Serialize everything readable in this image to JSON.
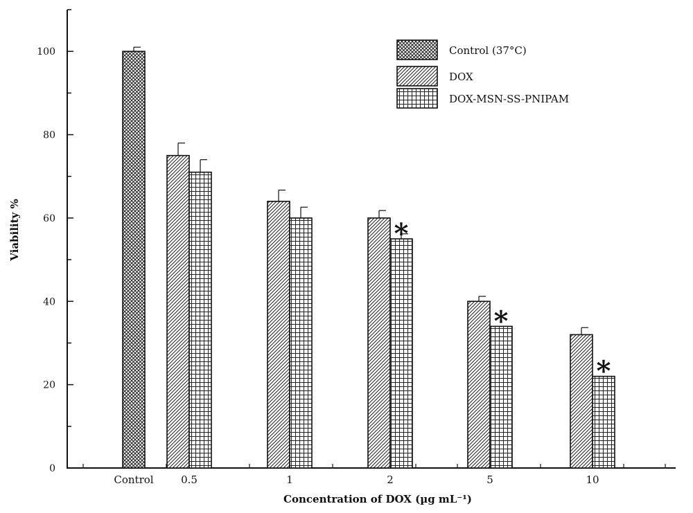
{
  "chart_data": {
    "type": "bar",
    "xlabel": "Concentration of DOX (µg mL⁻¹)",
    "ylabel": "Viability %",
    "ylim": [
      0,
      110
    ],
    "yticks": [
      0,
      20,
      40,
      60,
      80,
      100
    ],
    "categories": [
      "Control",
      "0.5",
      "1",
      "2",
      "5",
      "10"
    ],
    "series": [
      {
        "name": "Control (37°C)",
        "pattern": "crosshatch",
        "values": [
          100,
          null,
          null,
          null,
          null,
          null
        ],
        "errors": [
          1,
          null,
          null,
          null,
          null,
          null
        ]
      },
      {
        "name": "DOX",
        "pattern": "diagonal",
        "values": [
          null,
          75,
          64,
          60,
          40,
          32
        ],
        "errors": [
          null,
          3,
          2.7,
          1.8,
          1.2,
          1.7
        ]
      },
      {
        "name": "DOX-MSN-SS-PNIPAM",
        "pattern": "grid",
        "values": [
          null,
          71,
          60,
          55,
          34,
          22
        ],
        "errors": [
          null,
          3,
          2.6,
          1.2,
          0,
          0
        ]
      }
    ],
    "annotations": [
      {
        "text": "*",
        "category": "2",
        "series": "DOX-MSN-SS-PNIPAM"
      },
      {
        "text": "*",
        "category": "5",
        "series": "DOX-MSN-SS-PNIPAM"
      },
      {
        "text": "*",
        "category": "10",
        "series": "DOX-MSN-SS-PNIPAM"
      }
    ],
    "legend_position": "top-right",
    "grid": false
  },
  "colors": {
    "ink": "#111111",
    "background": "#ffffff"
  }
}
